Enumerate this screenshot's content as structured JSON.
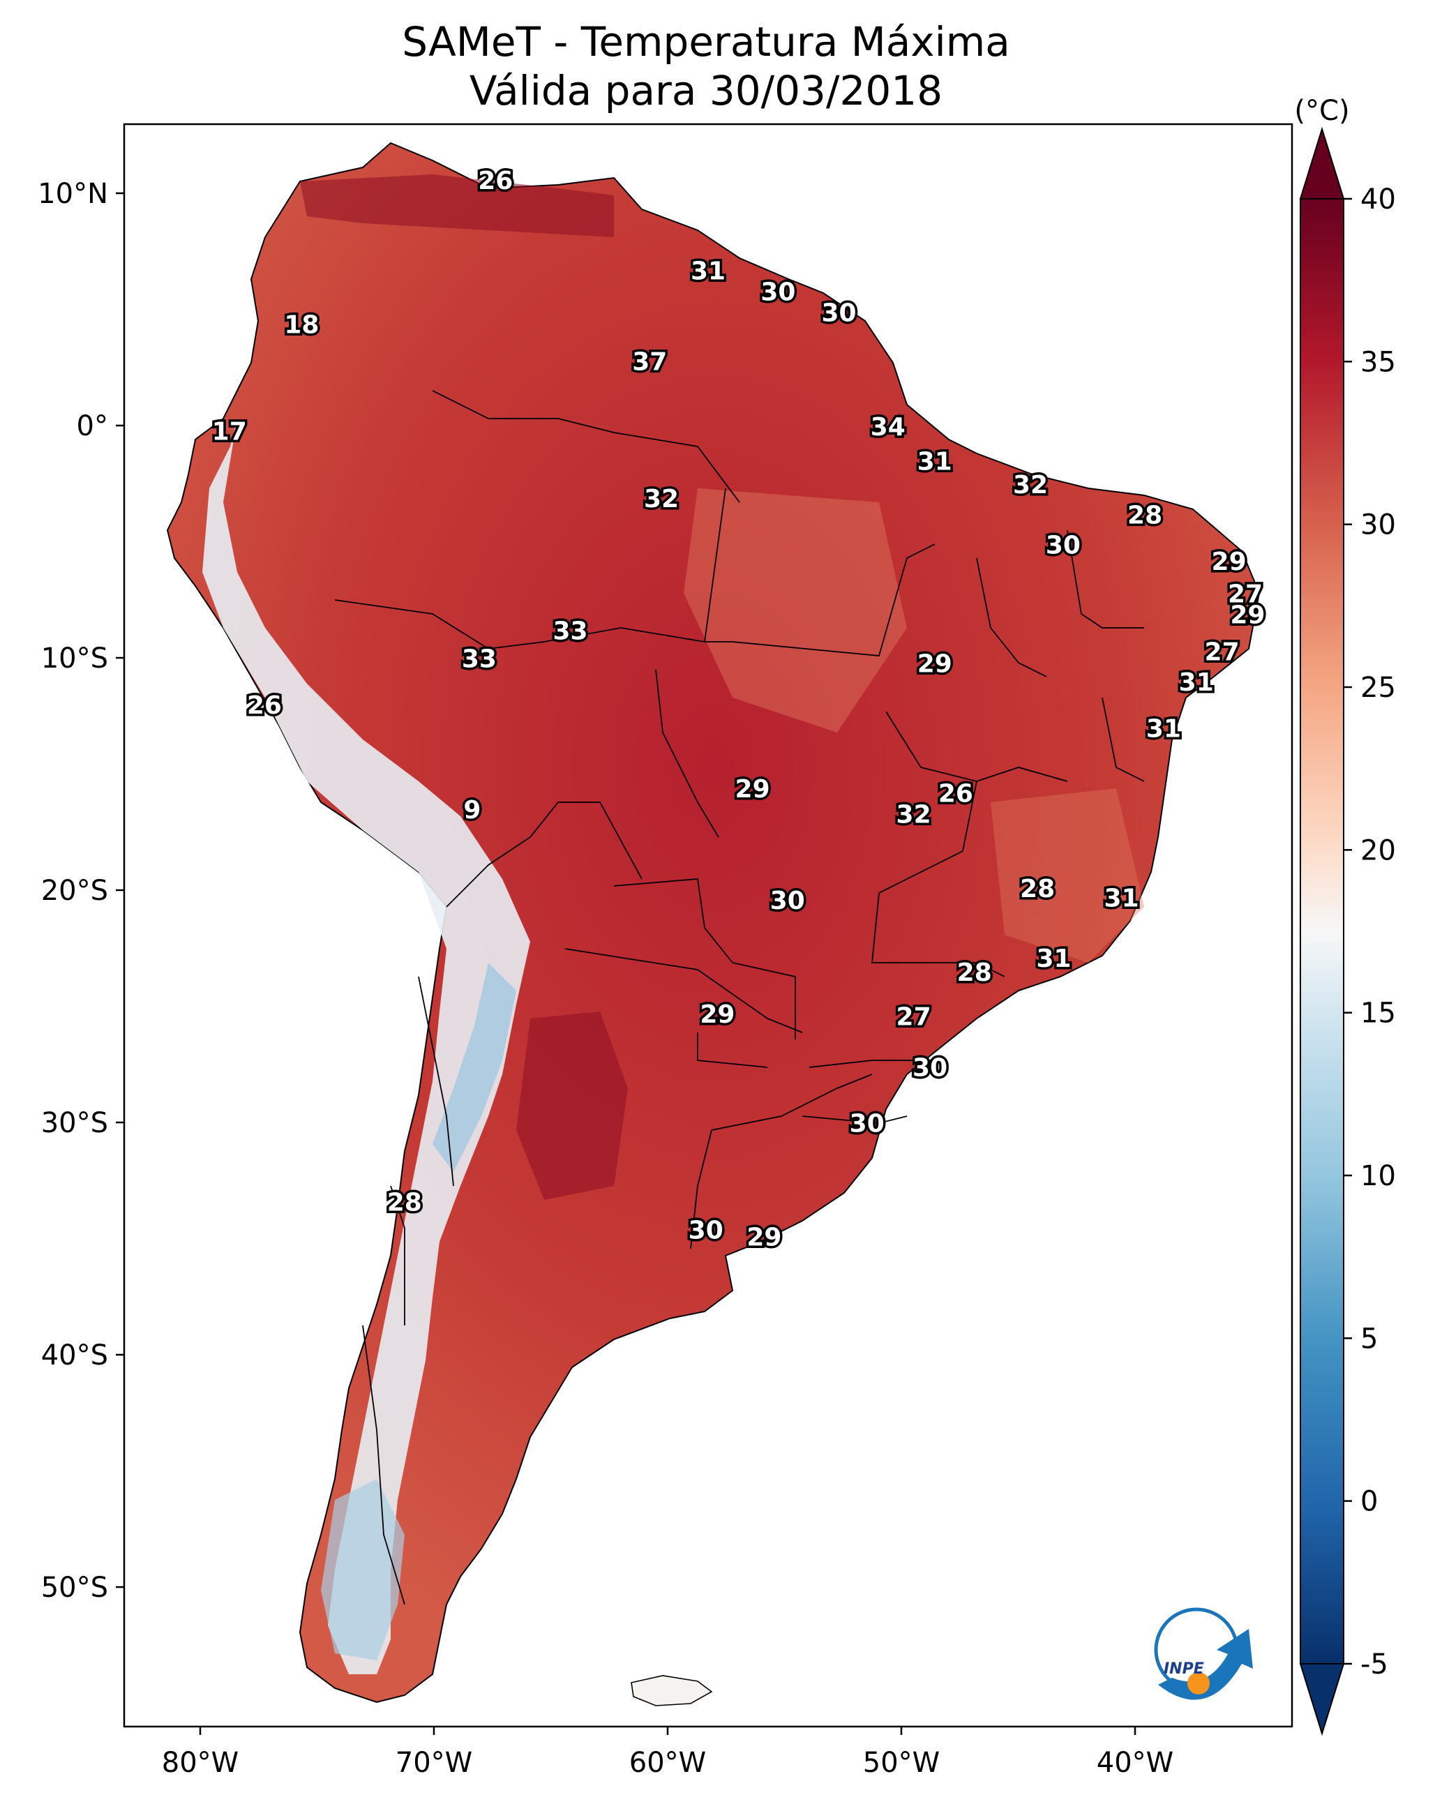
{
  "figure": {
    "title_line1": "SAMeT - Temperatura Máxima",
    "title_line2": "Válida para 30/03/2018"
  },
  "map": {
    "lon_labels": [
      "80°W",
      "70°W",
      "60°W",
      "50°W",
      "40°W"
    ],
    "lat_labels": [
      "10°N",
      "0°",
      "10°S",
      "20°S",
      "30°S",
      "40°S",
      "50°S"
    ],
    "lon_range": [
      -83,
      -33
    ],
    "lat_range": [
      -56,
      13
    ]
  },
  "colorbar": {
    "unit": "(°C)",
    "ticks": [
      "40",
      "35",
      "30",
      "25",
      "20",
      "15",
      "10",
      "5",
      "0",
      "-5"
    ],
    "range": [
      -5,
      40
    ],
    "colormap": "RdBu_r",
    "extend": "both"
  },
  "logo": {
    "text": "INPE"
  },
  "point_values": [
    {
      "value": "26",
      "lon": -67.1,
      "lat": 10.6
    },
    {
      "value": "31",
      "lon": -58.0,
      "lat": 6.7
    },
    {
      "value": "30",
      "lon": -55.0,
      "lat": 5.8
    },
    {
      "value": "30",
      "lon": -52.4,
      "lat": 4.9
    },
    {
      "value": "18",
      "lon": -75.4,
      "lat": 4.4
    },
    {
      "value": "37",
      "lon": -60.5,
      "lat": 2.8
    },
    {
      "value": "17",
      "lon": -78.5,
      "lat": -0.2
    },
    {
      "value": "34",
      "lon": -50.3,
      "lat": 0.0
    },
    {
      "value": "31",
      "lon": -48.3,
      "lat": -1.5
    },
    {
      "value": "32",
      "lon": -44.2,
      "lat": -2.5
    },
    {
      "value": "32",
      "lon": -60.0,
      "lat": -3.1
    },
    {
      "value": "28",
      "lon": -39.3,
      "lat": -3.8
    },
    {
      "value": "30",
      "lon": -42.8,
      "lat": -5.1
    },
    {
      "value": "29",
      "lon": -35.7,
      "lat": -5.8
    },
    {
      "value": "27",
      "lon": -35.0,
      "lat": -7.2
    },
    {
      "value": "29",
      "lon": -34.9,
      "lat": -8.1
    },
    {
      "value": "33",
      "lon": -63.9,
      "lat": -8.8
    },
    {
      "value": "27",
      "lon": -36.0,
      "lat": -9.7
    },
    {
      "value": "33",
      "lon": -67.8,
      "lat": -10.0
    },
    {
      "value": "29",
      "lon": -48.3,
      "lat": -10.2
    },
    {
      "value": "31",
      "lon": -37.1,
      "lat": -11.0
    },
    {
      "value": "26",
      "lon": -77.0,
      "lat": -12.0
    },
    {
      "value": "31",
      "lon": -38.5,
      "lat": -13.0
    },
    {
      "value": "26",
      "lon": -47.4,
      "lat": -15.8
    },
    {
      "value": "29",
      "lon": -56.1,
      "lat": -15.6
    },
    {
      "value": "9",
      "lon": -68.1,
      "lat": -16.5
    },
    {
      "value": "32",
      "lon": -49.2,
      "lat": -16.7
    },
    {
      "value": "28",
      "lon": -43.9,
      "lat": -19.9
    },
    {
      "value": "30",
      "lon": -54.6,
      "lat": -20.4
    },
    {
      "value": "31",
      "lon": -40.3,
      "lat": -20.3
    },
    {
      "value": "31",
      "lon": -43.2,
      "lat": -22.9
    },
    {
      "value": "28",
      "lon": -46.6,
      "lat": -23.5
    },
    {
      "value": "29",
      "lon": -57.6,
      "lat": -25.3
    },
    {
      "value": "27",
      "lon": -49.2,
      "lat": -25.4
    },
    {
      "value": "30",
      "lon": -48.5,
      "lat": -27.6
    },
    {
      "value": "30",
      "lon": -51.2,
      "lat": -30.0
    },
    {
      "value": "28",
      "lon": -71.0,
      "lat": -33.4
    },
    {
      "value": "30",
      "lon": -58.1,
      "lat": -34.6
    },
    {
      "value": "29",
      "lon": -55.6,
      "lat": -34.9
    }
  ]
}
